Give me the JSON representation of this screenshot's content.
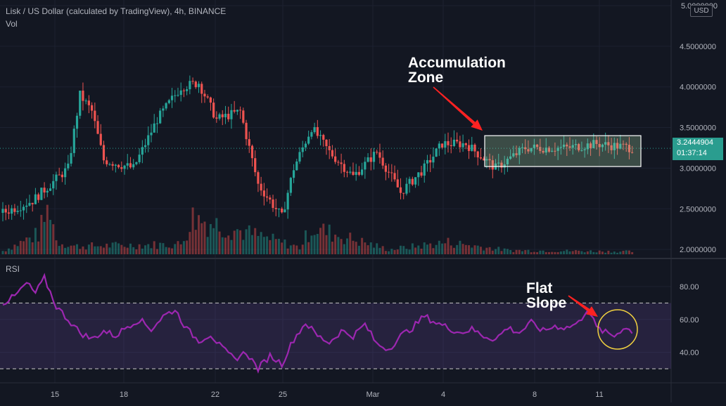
{
  "header": {
    "symbol_title": "Lisk / US Dollar (calculated by TradingView), 4h, BINANCE",
    "volume_label": "Vol",
    "rsi_label": "RSI",
    "currency": "USD"
  },
  "price_axis": {
    "ticks": [
      "5.0000000",
      "4.5000000",
      "4.0000000",
      "3.5000000",
      "3.0000000",
      "2.5000000",
      "2.0000000"
    ],
    "last_price": "3.2444904",
    "countdown": "01:37:14"
  },
  "rsi_axis": {
    "ticks": [
      "80.00",
      "60.00",
      "40.00"
    ],
    "upper_band": 70,
    "lower_band": 30
  },
  "time_axis": {
    "ticks": [
      "15",
      "18",
      "22",
      "25",
      "Mar",
      "4",
      "8",
      "11"
    ]
  },
  "annotations": {
    "accumulation": [
      "Accumulation",
      "Zone"
    ],
    "flat_slope": [
      "Flat",
      "Slope"
    ]
  },
  "colors": {
    "up": "#26a69a",
    "down": "#ef5350",
    "rsi_line": "#9c27b0",
    "rsi_band": "#7e57c2",
    "annotation_arrow": "#ff2222",
    "circle": "#f0d040"
  },
  "chart_data": {
    "type": "candlestick",
    "title": "Lisk / US Dollar (calculated by TradingView), 4h, BINANCE",
    "ylim": [
      1.9,
      5.0
    ],
    "x_categories": [
      "15",
      "18",
      "22",
      "25",
      "Mar",
      "4",
      "8",
      "11"
    ],
    "price_keypoints": [
      [
        0,
        2.45
      ],
      [
        10,
        2.6
      ],
      [
        22,
        3.0
      ],
      [
        26,
        3.9
      ],
      [
        30,
        3.7
      ],
      [
        34,
        3.1
      ],
      [
        44,
        3.0
      ],
      [
        52,
        3.6
      ],
      [
        60,
        4.0
      ],
      [
        66,
        4.05
      ],
      [
        72,
        3.6
      ],
      [
        80,
        3.7
      ],
      [
        86,
        2.8
      ],
      [
        94,
        2.4
      ],
      [
        98,
        3.0
      ],
      [
        104,
        3.5
      ],
      [
        110,
        3.2
      ],
      [
        118,
        2.9
      ],
      [
        126,
        3.2
      ],
      [
        134,
        2.7
      ],
      [
        142,
        3.0
      ],
      [
        148,
        3.3
      ],
      [
        156,
        3.3
      ],
      [
        166,
        3.0
      ],
      [
        176,
        3.25
      ],
      [
        190,
        3.25
      ],
      [
        200,
        3.3
      ],
      [
        212,
        3.25
      ]
    ],
    "volume_keypoints": [
      [
        0,
        0.05
      ],
      [
        12,
        0.3
      ],
      [
        16,
        0.75
      ],
      [
        18,
        0.2
      ],
      [
        24,
        0.12
      ],
      [
        60,
        0.15
      ],
      [
        64,
        0.55
      ],
      [
        100,
        0.1
      ],
      [
        104,
        0.4
      ],
      [
        130,
        0.07
      ],
      [
        150,
        0.18
      ],
      [
        170,
        0.06
      ],
      [
        212,
        0.04
      ]
    ],
    "accumulation_zone": {
      "price_low": 3.02,
      "price_high": 3.4
    },
    "rsi": {
      "ylim": [
        20,
        90
      ],
      "bands": [
        30,
        70
      ],
      "keypoints": [
        [
          0,
          70
        ],
        [
          4,
          74
        ],
        [
          8,
          82
        ],
        [
          11,
          76
        ],
        [
          14,
          85
        ],
        [
          18,
          68
        ],
        [
          22,
          60
        ],
        [
          26,
          52
        ],
        [
          30,
          48
        ],
        [
          34,
          53
        ],
        [
          38,
          50
        ],
        [
          42,
          56
        ],
        [
          46,
          60
        ],
        [
          50,
          54
        ],
        [
          54,
          62
        ],
        [
          58,
          66
        ],
        [
          62,
          54
        ],
        [
          66,
          47
        ],
        [
          70,
          51
        ],
        [
          74,
          42
        ],
        [
          78,
          36
        ],
        [
          82,
          40
        ],
        [
          86,
          30
        ],
        [
          90,
          38
        ],
        [
          94,
          33
        ],
        [
          98,
          48
        ],
        [
          102,
          58
        ],
        [
          106,
          50
        ],
        [
          110,
          46
        ],
        [
          114,
          53
        ],
        [
          118,
          50
        ],
        [
          122,
          57
        ],
        [
          126,
          45
        ],
        [
          130,
          42
        ],
        [
          134,
          50
        ],
        [
          138,
          55
        ],
        [
          142,
          62
        ],
        [
          146,
          58
        ],
        [
          150,
          55
        ],
        [
          154,
          52
        ],
        [
          158,
          54
        ],
        [
          162,
          50
        ],
        [
          166,
          48
        ],
        [
          170,
          55
        ],
        [
          174,
          52
        ],
        [
          178,
          58
        ],
        [
          182,
          53
        ],
        [
          186,
          56
        ],
        [
          190,
          55
        ],
        [
          194,
          58
        ],
        [
          197,
          67
        ],
        [
          200,
          55
        ],
        [
          203,
          52
        ],
        [
          206,
          50
        ],
        [
          209,
          55
        ],
        [
          212,
          53
        ]
      ]
    }
  }
}
